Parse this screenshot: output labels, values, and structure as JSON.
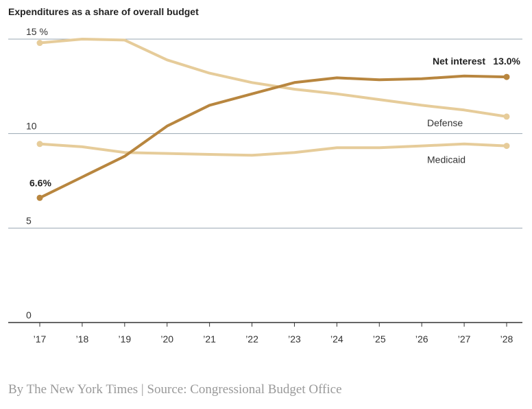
{
  "title": "Expenditures as a share of overall budget",
  "credit": "By The New York Times | Source: Congressional Budget Office",
  "chart_data": {
    "type": "line",
    "x": [
      "’17",
      "’18",
      "’19",
      "’20",
      "’21",
      "’22",
      "’23",
      "’24",
      "’25",
      "’26",
      "’27",
      "’28"
    ],
    "y_ticks": [
      "0",
      "5",
      "10",
      "15 %"
    ],
    "y_tick_values": [
      0,
      5,
      10,
      15
    ],
    "ylim": [
      0,
      15
    ],
    "grid": true,
    "series": [
      {
        "name": "Defense",
        "color": "#e6cc9a",
        "values": [
          14.8,
          15.0,
          14.95,
          13.9,
          13.2,
          12.7,
          12.35,
          12.1,
          11.8,
          11.5,
          11.25,
          10.9
        ]
      },
      {
        "name": "Medicaid",
        "color": "#e6cc9a",
        "values": [
          9.45,
          9.3,
          9.0,
          8.95,
          8.9,
          8.85,
          9.0,
          9.25,
          9.25,
          9.35,
          9.45,
          9.35
        ]
      },
      {
        "name": "Net interest",
        "color": "#b8863f",
        "values": [
          6.6,
          7.7,
          8.8,
          10.4,
          11.5,
          12.1,
          12.7,
          12.95,
          12.85,
          12.9,
          13.05,
          13.0
        ]
      }
    ],
    "annotations": {
      "net_interest_end": "13.0%",
      "net_interest_start": "6.6%"
    }
  }
}
